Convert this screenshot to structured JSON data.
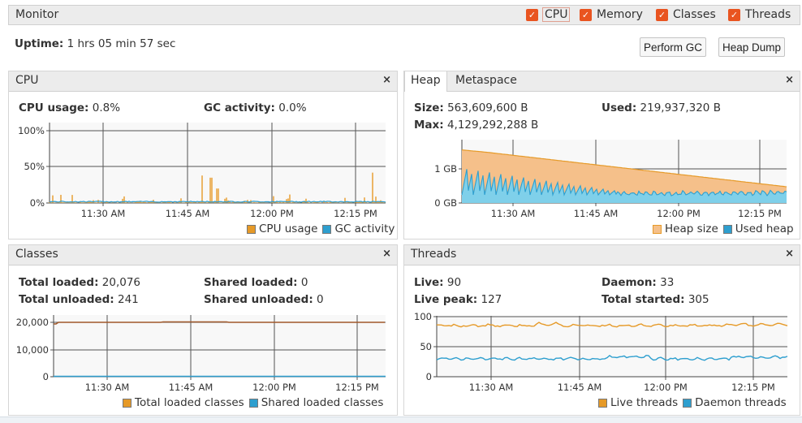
{
  "monitor": {
    "title": "Monitor",
    "checkboxes": [
      {
        "label": "CPU",
        "checked": true
      },
      {
        "label": "Memory",
        "checked": true
      },
      {
        "label": "Classes",
        "checked": true
      },
      {
        "label": "Threads",
        "checked": true
      }
    ],
    "uptime_label": "Uptime:",
    "uptime_value": "1 hrs 05 min 57 sec",
    "perform_gc": "Perform GC",
    "heap_dump": "Heap Dump",
    "accent": "#e95420"
  },
  "time_ticks": [
    "11:30 AM",
    "11:45 AM",
    "12:00 PM",
    "12:15 PM"
  ],
  "cpu": {
    "title": "CPU",
    "close": "×",
    "usage_label": "CPU usage:",
    "usage_value": "0.8%",
    "gc_label": "GC activity:",
    "gc_value": "0.0%",
    "y_ticks": [
      "100%",
      "50%",
      "0%"
    ],
    "legend": [
      "CPU usage",
      "GC activity"
    ],
    "colors": {
      "cpu": "#e69a28",
      "gc": "#2e9fcf"
    }
  },
  "heap": {
    "tabs": [
      "Heap",
      "Metaspace"
    ],
    "close": "×",
    "size_label": "Size:",
    "size_value": "563,609,600 B",
    "used_label": "Used:",
    "used_value": "219,937,320 B",
    "max_label": "Max:",
    "max_value": "4,129,292,288 B",
    "y_ticks": [
      "1 GB",
      "0 GB"
    ],
    "legend": [
      "Heap size",
      "Used heap"
    ],
    "colors": {
      "size": "#f5c08a",
      "size_line": "#e69a28",
      "used": "#7fd0ea",
      "used_line": "#2e9fcf"
    }
  },
  "classes": {
    "title": "Classes",
    "close": "×",
    "total_loaded_label": "Total loaded:",
    "total_loaded_value": "20,076",
    "shared_loaded_label": "Shared loaded:",
    "shared_loaded_value": "0",
    "total_unloaded_label": "Total unloaded:",
    "total_unloaded_value": "241",
    "shared_unloaded_label": "Shared unloaded:",
    "shared_unloaded_value": "0",
    "y_ticks": [
      "20,000",
      "10,000",
      "0"
    ],
    "legend": [
      "Total loaded classes",
      "Shared loaded classes"
    ],
    "colors": {
      "total": "#a0582a",
      "shared": "#2e9fcf"
    }
  },
  "threads": {
    "title": "Threads",
    "close": "×",
    "live_label": "Live:",
    "live_value": "90",
    "daemon_label": "Daemon:",
    "daemon_value": "33",
    "peak_label": "Live peak:",
    "peak_value": "127",
    "started_label": "Total started:",
    "started_value": "305",
    "y_ticks": [
      "100",
      "50",
      "0"
    ],
    "legend": [
      "Live threads",
      "Daemon threads"
    ],
    "colors": {
      "live": "#e69a28",
      "daemon": "#2e9fcf"
    }
  }
}
